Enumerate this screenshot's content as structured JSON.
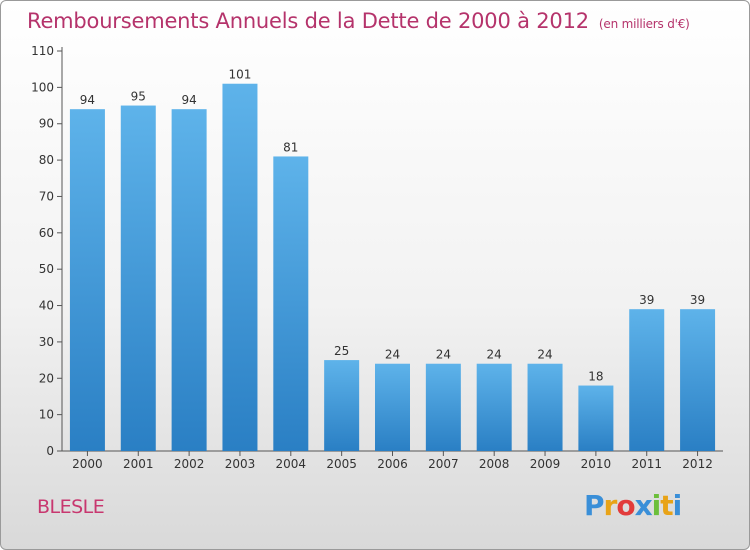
{
  "header": {
    "title": "Remboursements Annuels de la Dette de 2000 à 2012",
    "subtitle": "(en milliers d'€)"
  },
  "footer": {
    "commune": "BLESLE",
    "logo_text": "Proxiti"
  },
  "colors": {
    "bar_top": "#5eb3ea",
    "bar_bottom": "#2a7fc4",
    "title": "#b5336b",
    "logo": [
      "#3a8fd8",
      "#e8a317",
      "#e23b3b",
      "#3a8fd8",
      "#6cbf3b",
      "#e8a317",
      "#3a8fd8"
    ]
  },
  "chart_data": {
    "type": "bar",
    "title": "Remboursements Annuels de la Dette de 2000 à 2012",
    "xlabel": "",
    "ylabel": "",
    "categories": [
      "2000",
      "2001",
      "2002",
      "2003",
      "2004",
      "2005",
      "2006",
      "2007",
      "2008",
      "2009",
      "2010",
      "2011",
      "2012"
    ],
    "values": [
      94,
      95,
      94,
      101,
      81,
      25,
      24,
      24,
      24,
      24,
      18,
      39,
      39
    ],
    "ylim": [
      0,
      110
    ],
    "yticks": [
      0,
      10,
      20,
      30,
      40,
      50,
      60,
      70,
      80,
      90,
      100,
      110
    ],
    "grid": false,
    "legend": "none"
  }
}
